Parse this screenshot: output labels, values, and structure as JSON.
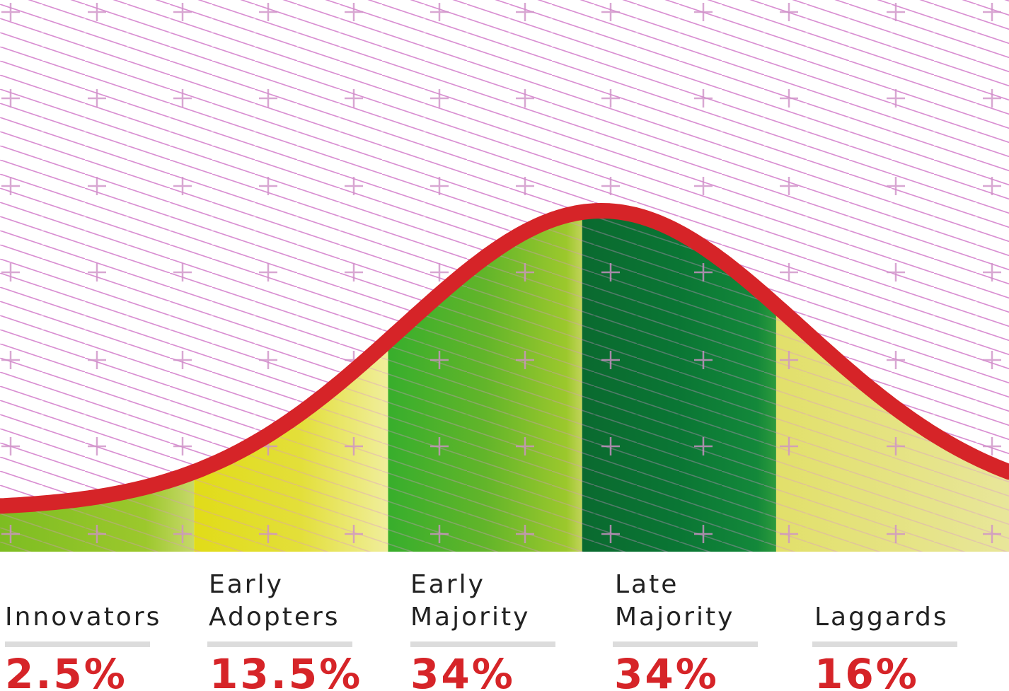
{
  "chart_data": {
    "type": "area",
    "title": "",
    "xlabel": "",
    "ylabel": "",
    "curve": "bell",
    "x_range": [
      -3.0,
      2.2
    ],
    "grid": true,
    "segments": [
      {
        "name": "innovators",
        "lines": [
          "Innovators"
        ],
        "value": "2.5%",
        "x_start": -3.0,
        "x_end": -2.0,
        "color": "#7ec020"
      },
      {
        "name": "early-adopters",
        "lines": [
          "Early",
          "Adopters"
        ],
        "value": "13.5%",
        "x_start": -2.0,
        "x_end": -1.0,
        "color": "#e4e020"
      },
      {
        "name": "early-majority",
        "lines": [
          "Early",
          "Majority"
        ],
        "value": "34%",
        "x_start": -1.0,
        "x_end": 0.0,
        "color": "#49b52c"
      },
      {
        "name": "late-majority",
        "lines": [
          "Late",
          "Majority"
        ],
        "value": "34%",
        "x_start": 0.0,
        "x_end": 1.0,
        "color": "#0a7a34"
      },
      {
        "name": "laggards",
        "lines": [
          "Laggards"
        ],
        "value": "16%",
        "x_start": 1.0,
        "x_end": 2.2,
        "color": "#e6e67a"
      }
    ],
    "colors": {
      "curve": "#d62428",
      "pattern": "#d98fd2",
      "percent": "#d62428",
      "rule": "#dcdcdc"
    }
  }
}
